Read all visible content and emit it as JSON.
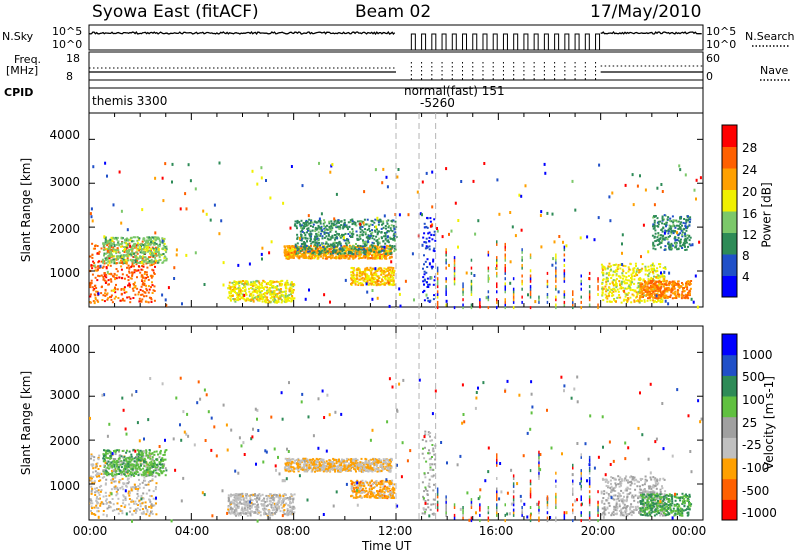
{
  "header": {
    "station": "Syowa East (fitACF)",
    "beam": "Beam 02",
    "date": "17/May/2010"
  },
  "top_panels": {
    "nsky_label": "N.Sky",
    "nsky_ticks": [
      "10^5",
      "10^0"
    ],
    "nsearch_label": "N.Search",
    "nsearch_ticks": [
      "10^5",
      "10^0"
    ],
    "freq_label": "Freq.",
    "freq_unit": "[MHz]",
    "freq_ticks": [
      "18",
      "8"
    ],
    "nave_label": "Nave",
    "nave_ticks": [
      "60",
      "0"
    ],
    "cpid_label": "CPID",
    "cpid_annotations": [
      "themis 3300",
      "normal(fast) 151",
      "-5260"
    ]
  },
  "colors": {
    "power_scale": [
      "#0000ff",
      "#2050c8",
      "#2e8b57",
      "#7cc86a",
      "#f0f000",
      "#ffa000",
      "#ff6000",
      "#ff0000"
    ],
    "velocity_scale": [
      "#ff0000",
      "#ff6000",
      "#ffa000",
      "#c0c0c0",
      "#a0a0a0",
      "#60c040",
      "#2e8b57",
      "#2050c8",
      "#0000ff"
    ],
    "dash": "#b4b4b4"
  },
  "chart_data": [
    {
      "type": "heatmap",
      "name": "Power",
      "xlabel": "",
      "ylabel": "Slant Range [km]",
      "x_ticks": [
        "00:00",
        "04:00",
        "08:00",
        "12:00",
        "16:00",
        "20:00",
        "00:00"
      ],
      "x_range_hours": [
        0,
        24
      ],
      "y_ticks": [
        1000,
        2000,
        3000,
        4000
      ],
      "ylim": [
        180,
        4600
      ],
      "colorbar_label": "Power [dB]",
      "colorbar_ticks": [
        "28",
        "24",
        "20",
        "16",
        "12",
        "8",
        "4"
      ],
      "colorbar_range": [
        0,
        32
      ],
      "scatter_regions": [
        {
          "t": [
            0.0,
            2.6
          ],
          "r": [
            300,
            1700
          ],
          "value": 26
        },
        {
          "t": [
            0.5,
            3.0
          ],
          "r": [
            1200,
            1800
          ],
          "value": 14
        },
        {
          "t": [
            5.4,
            8.0
          ],
          "r": [
            300,
            800
          ],
          "value": 18
        },
        {
          "t": [
            7.6,
            11.8
          ],
          "r": [
            1300,
            1600
          ],
          "value": 22
        },
        {
          "t": [
            8.0,
            12.0
          ],
          "r": [
            1400,
            2200
          ],
          "value": 10
        },
        {
          "t": [
            10.2,
            11.9
          ],
          "r": [
            700,
            1100
          ],
          "value": 20
        },
        {
          "t": [
            13.0,
            13.5
          ],
          "r": [
            300,
            2250
          ],
          "value": 4
        },
        {
          "t": [
            20.0,
            22.5
          ],
          "r": [
            300,
            1200
          ],
          "value": 18
        },
        {
          "t": [
            21.5,
            23.5
          ],
          "r": [
            400,
            800
          ],
          "value": 24
        },
        {
          "t": [
            22.0,
            23.5
          ],
          "r": [
            1500,
            2300
          ],
          "value": 10
        }
      ]
    },
    {
      "type": "heatmap",
      "name": "Velocity",
      "xlabel": "Time UT",
      "ylabel": "Slant Range [km]",
      "x_ticks": [
        "00:00",
        "04:00",
        "08:00",
        "12:00",
        "16:00",
        "20:00",
        "00:00"
      ],
      "x_range_hours": [
        0,
        24
      ],
      "y_ticks": [
        1000,
        2000,
        3000,
        4000
      ],
      "ylim": [
        180,
        4600
      ],
      "colorbar_label": "Velocity [m s-1]",
      "colorbar_ticks": [
        "1000",
        "500",
        "100",
        "25",
        "-25",
        "-100",
        "-500",
        "-1000"
      ],
      "colorbar_range": [
        -1200,
        1200
      ],
      "scatter_regions": [
        {
          "t": [
            0.0,
            2.6
          ],
          "r": [
            300,
            1700
          ],
          "value": -300
        },
        {
          "t": [
            0.5,
            3.0
          ],
          "r": [
            1200,
            1800
          ],
          "value": 300
        },
        {
          "t": [
            5.4,
            8.0
          ],
          "r": [
            300,
            800
          ],
          "value": -200
        },
        {
          "t": [
            7.6,
            11.8
          ],
          "r": [
            1300,
            1600
          ],
          "value": -400
        },
        {
          "t": [
            10.2,
            11.9
          ],
          "r": [
            700,
            1100
          ],
          "value": -500
        },
        {
          "t": [
            13.0,
            13.5
          ],
          "r": [
            300,
            2250
          ],
          "value": 0
        },
        {
          "t": [
            20.0,
            22.5
          ],
          "r": [
            300,
            1200
          ],
          "value": -150
        },
        {
          "t": [
            21.5,
            23.5
          ],
          "r": [
            300,
            800
          ],
          "value": 400
        }
      ]
    }
  ]
}
